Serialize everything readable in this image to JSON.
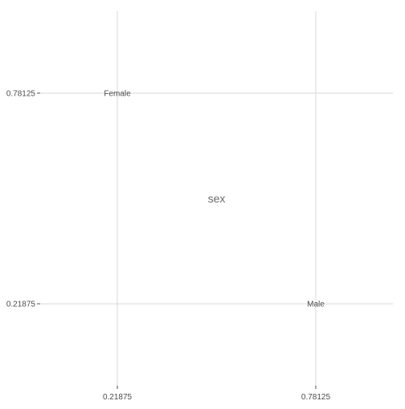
{
  "chart_data": {
    "type": "scatter",
    "title": "",
    "xlabel": "",
    "ylabel": "",
    "xlim": [
      0,
      1
    ],
    "ylim": [
      0,
      1
    ],
    "grid": true,
    "x_ticks": [
      0.21875,
      0.78125
    ],
    "y_ticks": [
      0.21875,
      0.78125
    ],
    "x_tick_labels": [
      "0.21875",
      "0.78125"
    ],
    "y_tick_labels": [
      "0.21875",
      "0.78125"
    ],
    "points": [
      {
        "label": "Female",
        "x": 0.21875,
        "y": 0.78125
      },
      {
        "label": "Male",
        "x": 0.78125,
        "y": 0.21875
      }
    ],
    "annotation": {
      "text": "sex",
      "x": 0.5,
      "y": 0.5
    }
  }
}
